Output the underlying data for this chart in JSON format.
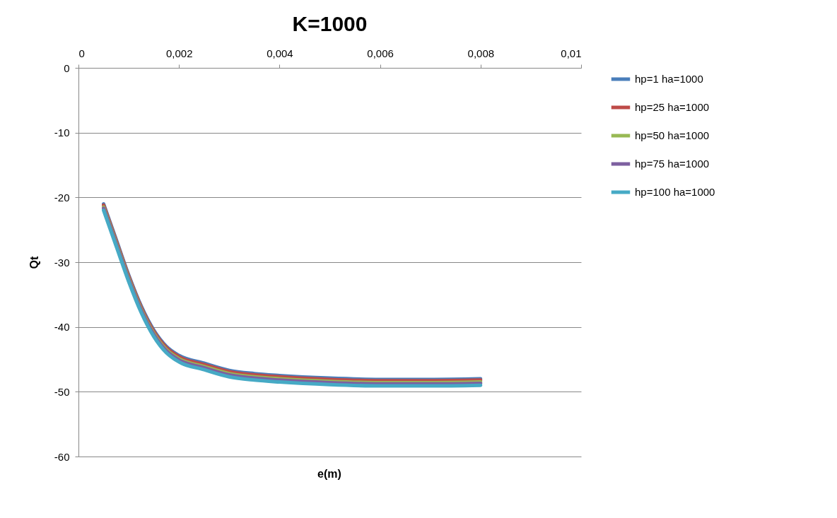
{
  "chart_data": {
    "type": "line",
    "title": "K=1000",
    "xlabel": "e(m)",
    "ylabel": "Qt",
    "x": [
      0.0005,
      0.00075,
      0.001,
      0.00125,
      0.0015,
      0.00175,
      0.002,
      0.0025,
      0.003,
      0.0035,
      0.004,
      0.005,
      0.006,
      0.007,
      0.008
    ],
    "series": [
      {
        "name": "hp=1      ha=1000",
        "color": "#4a7ebb",
        "values": [
          -21.0,
          -26.5,
          -32.0,
          -36.8,
          -40.5,
          -43.0,
          -44.4,
          -45.6,
          -46.7,
          -47.2,
          -47.5,
          -47.9,
          -48.1,
          -48.1,
          -48.0
        ]
      },
      {
        "name": "hp=25    ha=1000",
        "color": "#be4b48",
        "values": [
          -21.2,
          -26.7,
          -32.2,
          -37.0,
          -40.7,
          -43.2,
          -44.6,
          -45.8,
          -46.9,
          -47.4,
          -47.7,
          -48.1,
          -48.3,
          -48.3,
          -48.2
        ]
      },
      {
        "name": "hp=50    ha=1000",
        "color": "#98b954",
        "values": [
          -21.5,
          -27.0,
          -32.5,
          -37.3,
          -41.0,
          -43.5,
          -44.9,
          -46.1,
          -47.2,
          -47.7,
          -48.0,
          -48.4,
          -48.6,
          -48.6,
          -48.5
        ]
      },
      {
        "name": "hp=75    ha=1000",
        "color": "#7d60a0",
        "values": [
          -21.7,
          -27.2,
          -32.7,
          -37.5,
          -41.2,
          -43.7,
          -45.1,
          -46.3,
          -47.4,
          -47.9,
          -48.2,
          -48.6,
          -48.8,
          -48.8,
          -48.7
        ]
      },
      {
        "name": "hp=100  ha=1000",
        "color": "#46aac5",
        "values": [
          -22.0,
          -27.5,
          -33.0,
          -37.8,
          -41.5,
          -44.0,
          -45.4,
          -46.6,
          -47.7,
          -48.2,
          -48.5,
          -48.9,
          -49.1,
          -49.1,
          -49.0
        ]
      }
    ],
    "xlim": [
      0,
      0.01
    ],
    "xticks": [
      0,
      {
        "value": 0.002,
        "label": "0,002"
      },
      {
        "value": 0.004,
        "label": "0,004"
      },
      {
        "value": 0.006,
        "label": "0,006"
      },
      {
        "value": 0.008,
        "label": "0,008"
      },
      {
        "value": 0.01,
        "label": "0,01"
      }
    ],
    "ylim": [
      -60,
      0
    ],
    "yticks": [
      -60,
      -50,
      -40,
      -30,
      -20,
      -10,
      0
    ],
    "grid": "y",
    "legend": "right",
    "marker": "none",
    "line_style": "solid"
  }
}
